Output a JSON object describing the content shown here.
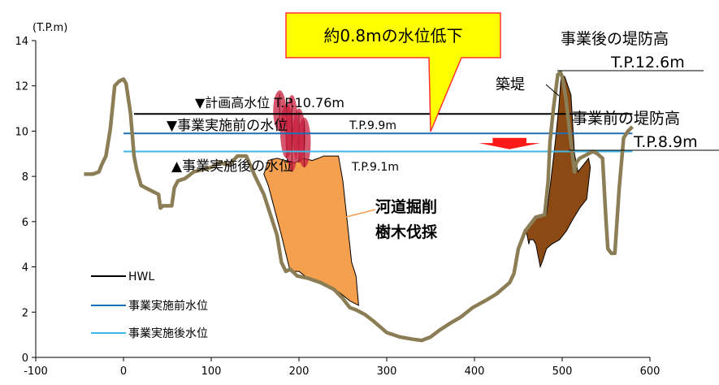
{
  "chart_data": {
    "type": "line",
    "title": "",
    "xlabel": "",
    "ylabel": "(T.P.m)",
    "xlim": [
      -100,
      600
    ],
    "ylim": [
      0,
      14
    ],
    "x_ticks": [
      "-100",
      "0",
      "100",
      "200",
      "300",
      "400",
      "500",
      "600"
    ],
    "y_ticks": [
      "0",
      "2",
      "4",
      "6",
      "8",
      "10",
      "12",
      "14"
    ],
    "legend_position": "bottom-left",
    "grid": false,
    "colors": {
      "hwl": "#000000",
      "before": "#1f6fb4",
      "after": "#3fb6e6",
      "ground": "#8b7d55",
      "excavation": "#f5a04e",
      "levee": "#8b4a14",
      "arrow": "#ff1a1a",
      "callout_fill": "#ffff00",
      "callout_border": "#ff3333",
      "callout_text": "#ff0000",
      "excavation_text": "#f5a04e",
      "before_text": "#1f6fb4",
      "after_text": "#3fb6e6"
    },
    "series": [
      {
        "name": "HWL",
        "key": "hwl",
        "x": [
          12,
          580
        ],
        "y": [
          10.76,
          10.76
        ]
      },
      {
        "name": "事業実施前水位",
        "key": "before",
        "x": [
          0,
          580
        ],
        "y": [
          9.9,
          9.9
        ]
      },
      {
        "name": "事業実施後水位",
        "key": "after",
        "x": [
          0,
          580
        ],
        "y": [
          9.1,
          9.1
        ]
      }
    ],
    "ground_profile": {
      "x": [
        -45,
        -35,
        -28,
        -25,
        -20,
        -15,
        -10,
        -5,
        0,
        3,
        8,
        12,
        15,
        20,
        25,
        30,
        40,
        42,
        45,
        55,
        58,
        62,
        70,
        80,
        90,
        100,
        110,
        120,
        130,
        140,
        150,
        160,
        175,
        180,
        185,
        190,
        198,
        210,
        225,
        240,
        250,
        258,
        265,
        275,
        285,
        300,
        315,
        330,
        340,
        350,
        360,
        372,
        385,
        398,
        412,
        425,
        440,
        445,
        450,
        455,
        458,
        462,
        466,
        470,
        480,
        484,
        486,
        490,
        495,
        498,
        500,
        504,
        510,
        514,
        516,
        520,
        530,
        535,
        540,
        546,
        550,
        552,
        556,
        560,
        565,
        570,
        575,
        580
      ],
      "y": [
        8.1,
        8.1,
        8.2,
        8.5,
        8.9,
        10.1,
        12.0,
        12.2,
        12.3,
        12.1,
        10.8,
        8.9,
        8.3,
        7.6,
        7.5,
        7.4,
        7.2,
        6.6,
        6.7,
        6.7,
        7.5,
        7.8,
        7.9,
        8.2,
        8.3,
        8.4,
        8.6,
        8.5,
        8.9,
        8.9,
        8.0,
        7.2,
        5.4,
        4.2,
        3.8,
        3.9,
        3.6,
        3.5,
        3.3,
        3.0,
        2.6,
        2.2,
        2.1,
        1.9,
        1.6,
        1.1,
        0.9,
        0.8,
        0.75,
        0.9,
        1.2,
        1.5,
        1.8,
        2.2,
        2.5,
        2.8,
        3.3,
        3.7,
        4.8,
        5.3,
        5.6,
        5.8,
        6.0,
        6.2,
        6.3,
        7.8,
        9.5,
        11.0,
        12.5,
        12.6,
        12.4,
        11.5,
        9.5,
        8.2,
        8.6,
        8.8,
        9.0,
        9.1,
        9.0,
        8.8,
        6.0,
        4.8,
        4.6,
        4.6,
        7.5,
        9.7,
        10.0,
        10.2
      ]
    },
    "excavation": {
      "x": [
        160,
        165,
        180,
        190,
        200,
        210,
        222,
        232,
        245,
        258,
        268,
        265,
        260,
        255,
        250,
        245,
        245,
        232,
        228,
        222,
        215,
        205,
        195,
        185,
        175,
        165,
        160
      ],
      "y": [
        8.1,
        7.6,
        5.4,
        3.8,
        3.8,
        3.5,
        3.4,
        3.2,
        2.9,
        2.5,
        2.3,
        3.6,
        4.2,
        6.0,
        7.8,
        8.9,
        8.9,
        8.9,
        8.9,
        8.8,
        8.7,
        8.8,
        8.6,
        8.7,
        8.8,
        8.7,
        8.1
      ]
    },
    "levee": {
      "x": [
        458,
        466,
        470,
        482,
        487,
        492,
        496,
        499,
        503,
        510,
        514,
        518,
        530,
        532,
        528,
        520,
        512,
        505,
        497,
        488,
        482,
        478,
        475,
        470,
        467,
        463,
        462,
        460,
        458
      ],
      "y": [
        5.6,
        6.0,
        6.2,
        6.3,
        7.8,
        9.5,
        11.0,
        12.5,
        12.4,
        11.6,
        9.0,
        8.2,
        8.8,
        8.4,
        7.0,
        6.6,
        6.1,
        5.6,
        5.2,
        5.0,
        4.8,
        4.3,
        4.0,
        5.0,
        5.2,
        5.2,
        5.0,
        5.4,
        5.6
      ]
    },
    "arrow": {
      "x": 440,
      "y_top": 9.7,
      "y_bottom": 9.2,
      "half_width": 35
    },
    "annotations": {
      "callout": "約0.8mの水位低下",
      "hwl_label": "▼計画高水位 T.P.10.76m",
      "before_label_main": "▼事業実施前の水位",
      "before_label_tp": "T.P.9.9m",
      "after_label_main": "▲事業実施後の水位",
      "after_label_tp": "T.P.9.1m",
      "excavation_line1": "河道掘削",
      "excavation_line2": "樹木伐採",
      "levee_label": "築堤",
      "after_levee_title": "事業後の堤防高",
      "after_levee_tp": "T.P.12.6m",
      "before_levee_title": "事業前の堤防高",
      "before_levee_tp": "T.P.8.9m"
    }
  }
}
